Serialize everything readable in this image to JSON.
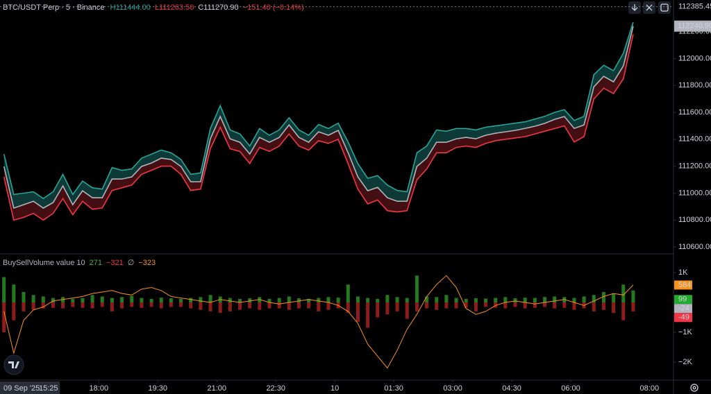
{
  "chart_data": [
    {
      "type": "line",
      "title": "BTC/USDT Perp · 5 · Binance",
      "ohlc": [
        {
          "key": "H",
          "value": "111444.00",
          "color": "#26a69a"
        },
        {
          "key": "L",
          "value": "111263.50",
          "color": "#f23645"
        },
        {
          "key": "C",
          "value": "111270.90",
          "color": "#d1d4dc"
        }
      ],
      "change": "−151.40 (−0.14%)",
      "xlim": [
        -0.4,
        68.1
      ],
      "ylim": [
        110554,
        112435
      ],
      "yticks": [
        {
          "value": 110600,
          "label": "110600.00"
        },
        {
          "value": 110800,
          "label": "110800.00"
        },
        {
          "value": 111000,
          "label": "111000.00"
        },
        {
          "value": 111200,
          "label": "111200.00"
        },
        {
          "value": 111400,
          "label": "111400.00"
        },
        {
          "value": 111600,
          "label": "111600.00"
        },
        {
          "value": 111800,
          "label": "111800.00"
        },
        {
          "value": 112000,
          "label": "112000.00"
        },
        {
          "value": 112200,
          "label": "112200.00"
        }
      ],
      "price_tags": [
        {
          "value": 112385.45,
          "label": "112385.45"
        },
        {
          "value": 112240.9,
          "label": "112240.90"
        }
      ],
      "series": [
        {
          "color": "#26a69a",
          "values": [
            111290,
            110990,
            111000,
            111010,
            110960,
            111010,
            111140,
            110990,
            111090,
            111040,
            111030,
            111190,
            111170,
            111180,
            111260,
            111290,
            111320,
            111300,
            111250,
            111140,
            111150,
            111480,
            111650,
            111470,
            111440,
            111350,
            111480,
            111430,
            111470,
            111560,
            111470,
            111430,
            111510,
            111480,
            111520,
            111380,
            111220,
            111110,
            111130,
            111060,
            111020,
            111010,
            111300,
            111350,
            111470,
            111460,
            111480,
            111480,
            111470,
            111490,
            111500,
            111510,
            111520,
            111530,
            111550,
            111570,
            111600,
            111620,
            111540,
            111570,
            111880,
            111950,
            111910,
            112040,
            112270
          ]
        },
        {
          "color": "#b2b5be",
          "values": [
            111198,
            110889,
            110914,
            110940,
            110889,
            110930,
            111054,
            110914,
            111018,
            110966,
            110966,
            111105,
            111105,
            111121,
            111198,
            111224,
            111260,
            111250,
            111198,
            111085,
            111085,
            111404,
            111569,
            111404,
            111378,
            111291,
            111414,
            111378,
            111414,
            111507,
            111414,
            111378,
            111456,
            111430,
            111466,
            111301,
            111121,
            111018,
            111043,
            110966,
            110940,
            110940,
            111198,
            111260,
            111378,
            111378,
            111404,
            111414,
            111404,
            111430,
            111445,
            111456,
            111466,
            111481,
            111497,
            111518,
            111548,
            111569,
            111481,
            111507,
            111790,
            111868,
            111827,
            111945,
            112240.9
          ]
        },
        {
          "color": "#f23645",
          "values": [
            111120,
            110800,
            110820,
            110850,
            110800,
            110850,
            110960,
            110840,
            110940,
            110880,
            110890,
            111020,
            111040,
            111060,
            111140,
            111170,
            111200,
            111200,
            111140,
            111020,
            111030,
            111330,
            111490,
            111330,
            111310,
            111220,
            111340,
            111310,
            111350,
            111440,
            111350,
            111320,
            111390,
            111370,
            111400,
            111220,
            111030,
            110920,
            110950,
            110870,
            110860,
            110870,
            111100,
            111180,
            111300,
            111300,
            111340,
            111350,
            111340,
            111370,
            111390,
            111400,
            111410,
            111420,
            111440,
            111460,
            111480,
            111500,
            111380,
            111420,
            111700,
            111780,
            111740,
            111850,
            112180
          ]
        }
      ]
    },
    {
      "type": "bar",
      "title": "BuySellVolume value 10",
      "legend_values": [
        {
          "text": "271",
          "color": "#4caf50"
        },
        {
          "text": "−321",
          "color": "#f23645"
        },
        {
          "text": "∅",
          "color": "#b2b5be"
        },
        {
          "text": "−323",
          "color": "#f7931a"
        }
      ],
      "xlim": [
        -0.4,
        68.1
      ],
      "xticks": [
        {
          "value": 9.65,
          "label": "18:00"
        },
        {
          "value": 15.65,
          "label": "19:30"
        },
        {
          "value": 21.65,
          "label": "21:00"
        },
        {
          "value": 27.65,
          "label": "22:30"
        },
        {
          "value": 33.65,
          "label": "10"
        },
        {
          "value": 39.65,
          "label": "01:30"
        },
        {
          "value": 45.65,
          "label": "03:00"
        },
        {
          "value": 51.65,
          "label": "04:30"
        },
        {
          "value": 57.65,
          "label": "06:00"
        },
        {
          "value": 65.65,
          "label": "08:00"
        }
      ],
      "cursor_date": "09 Sep '25",
      "cursor_time": "15:25",
      "ylim": [
        -2605,
        1605
      ],
      "yticks": [
        {
          "value": 1000,
          "label": "1K"
        },
        {
          "value": -1000,
          "label": "−1K"
        },
        {
          "value": -2000,
          "label": "−2K"
        }
      ],
      "tags": [
        {
          "value": 584,
          "color": "#f7931a"
        },
        {
          "value": 99,
          "color": "#22ab2c"
        },
        {
          "value": -24,
          "color": "#b2b5be"
        },
        {
          "value": -49,
          "color": "#f23645"
        }
      ],
      "series": [
        {
          "color": "#237a1f",
          "values": [
            850,
            600,
            350,
            250,
            200,
            150,
            180,
            120,
            150,
            250,
            200,
            150,
            180,
            220,
            150,
            120,
            160,
            140,
            120,
            150,
            180,
            250,
            200,
            150,
            120,
            140,
            180,
            120,
            150,
            200,
            140,
            120,
            150,
            180,
            160,
            600,
            200,
            150,
            120,
            250,
            180,
            150,
            900,
            200,
            180,
            250,
            150,
            120,
            140,
            130,
            150,
            180,
            140,
            160,
            150,
            180,
            200,
            180,
            150,
            200,
            250,
            350,
            300,
            600,
            400
          ]
        },
        {
          "color": "#8e1c1c",
          "values": [
            -1000,
            -600,
            -300,
            -250,
            -200,
            -180,
            -200,
            -150,
            -180,
            -200,
            -150,
            -300,
            -200,
            -150,
            -180,
            -150,
            -200,
            -150,
            -150,
            -200,
            -250,
            -300,
            -350,
            -300,
            -250,
            -200,
            -250,
            -200,
            -200,
            -250,
            -200,
            -200,
            -300,
            -250,
            -200,
            -350,
            -650,
            -850,
            -500,
            -400,
            -300,
            -550,
            -300,
            -200,
            -250,
            -200,
            -200,
            -180,
            -300,
            -150,
            -180,
            -200,
            -150,
            -200,
            -180,
            -150,
            -200,
            -180,
            -250,
            -200,
            -300,
            -250,
            -350,
            -600,
            -300
          ]
        },
        {
          "color": "#f7931a",
          "line": true,
          "values": [
            -300,
            -1700,
            -600,
            -250,
            -150,
            50,
            100,
            150,
            200,
            300,
            350,
            400,
            300,
            250,
            450,
            500,
            400,
            200,
            150,
            100,
            50,
            0,
            100,
            50,
            0,
            50,
            100,
            0,
            -50,
            0,
            50,
            100,
            50,
            0,
            -100,
            -300,
            -700,
            -1400,
            -1800,
            -2200,
            -1600,
            -900,
            -400,
            200,
            600,
            900,
            500,
            -200,
            -400,
            -300,
            -100,
            0,
            50,
            0,
            -50,
            0,
            50,
            100,
            0,
            -100,
            50,
            200,
            300,
            250,
            584
          ]
        }
      ]
    }
  ]
}
